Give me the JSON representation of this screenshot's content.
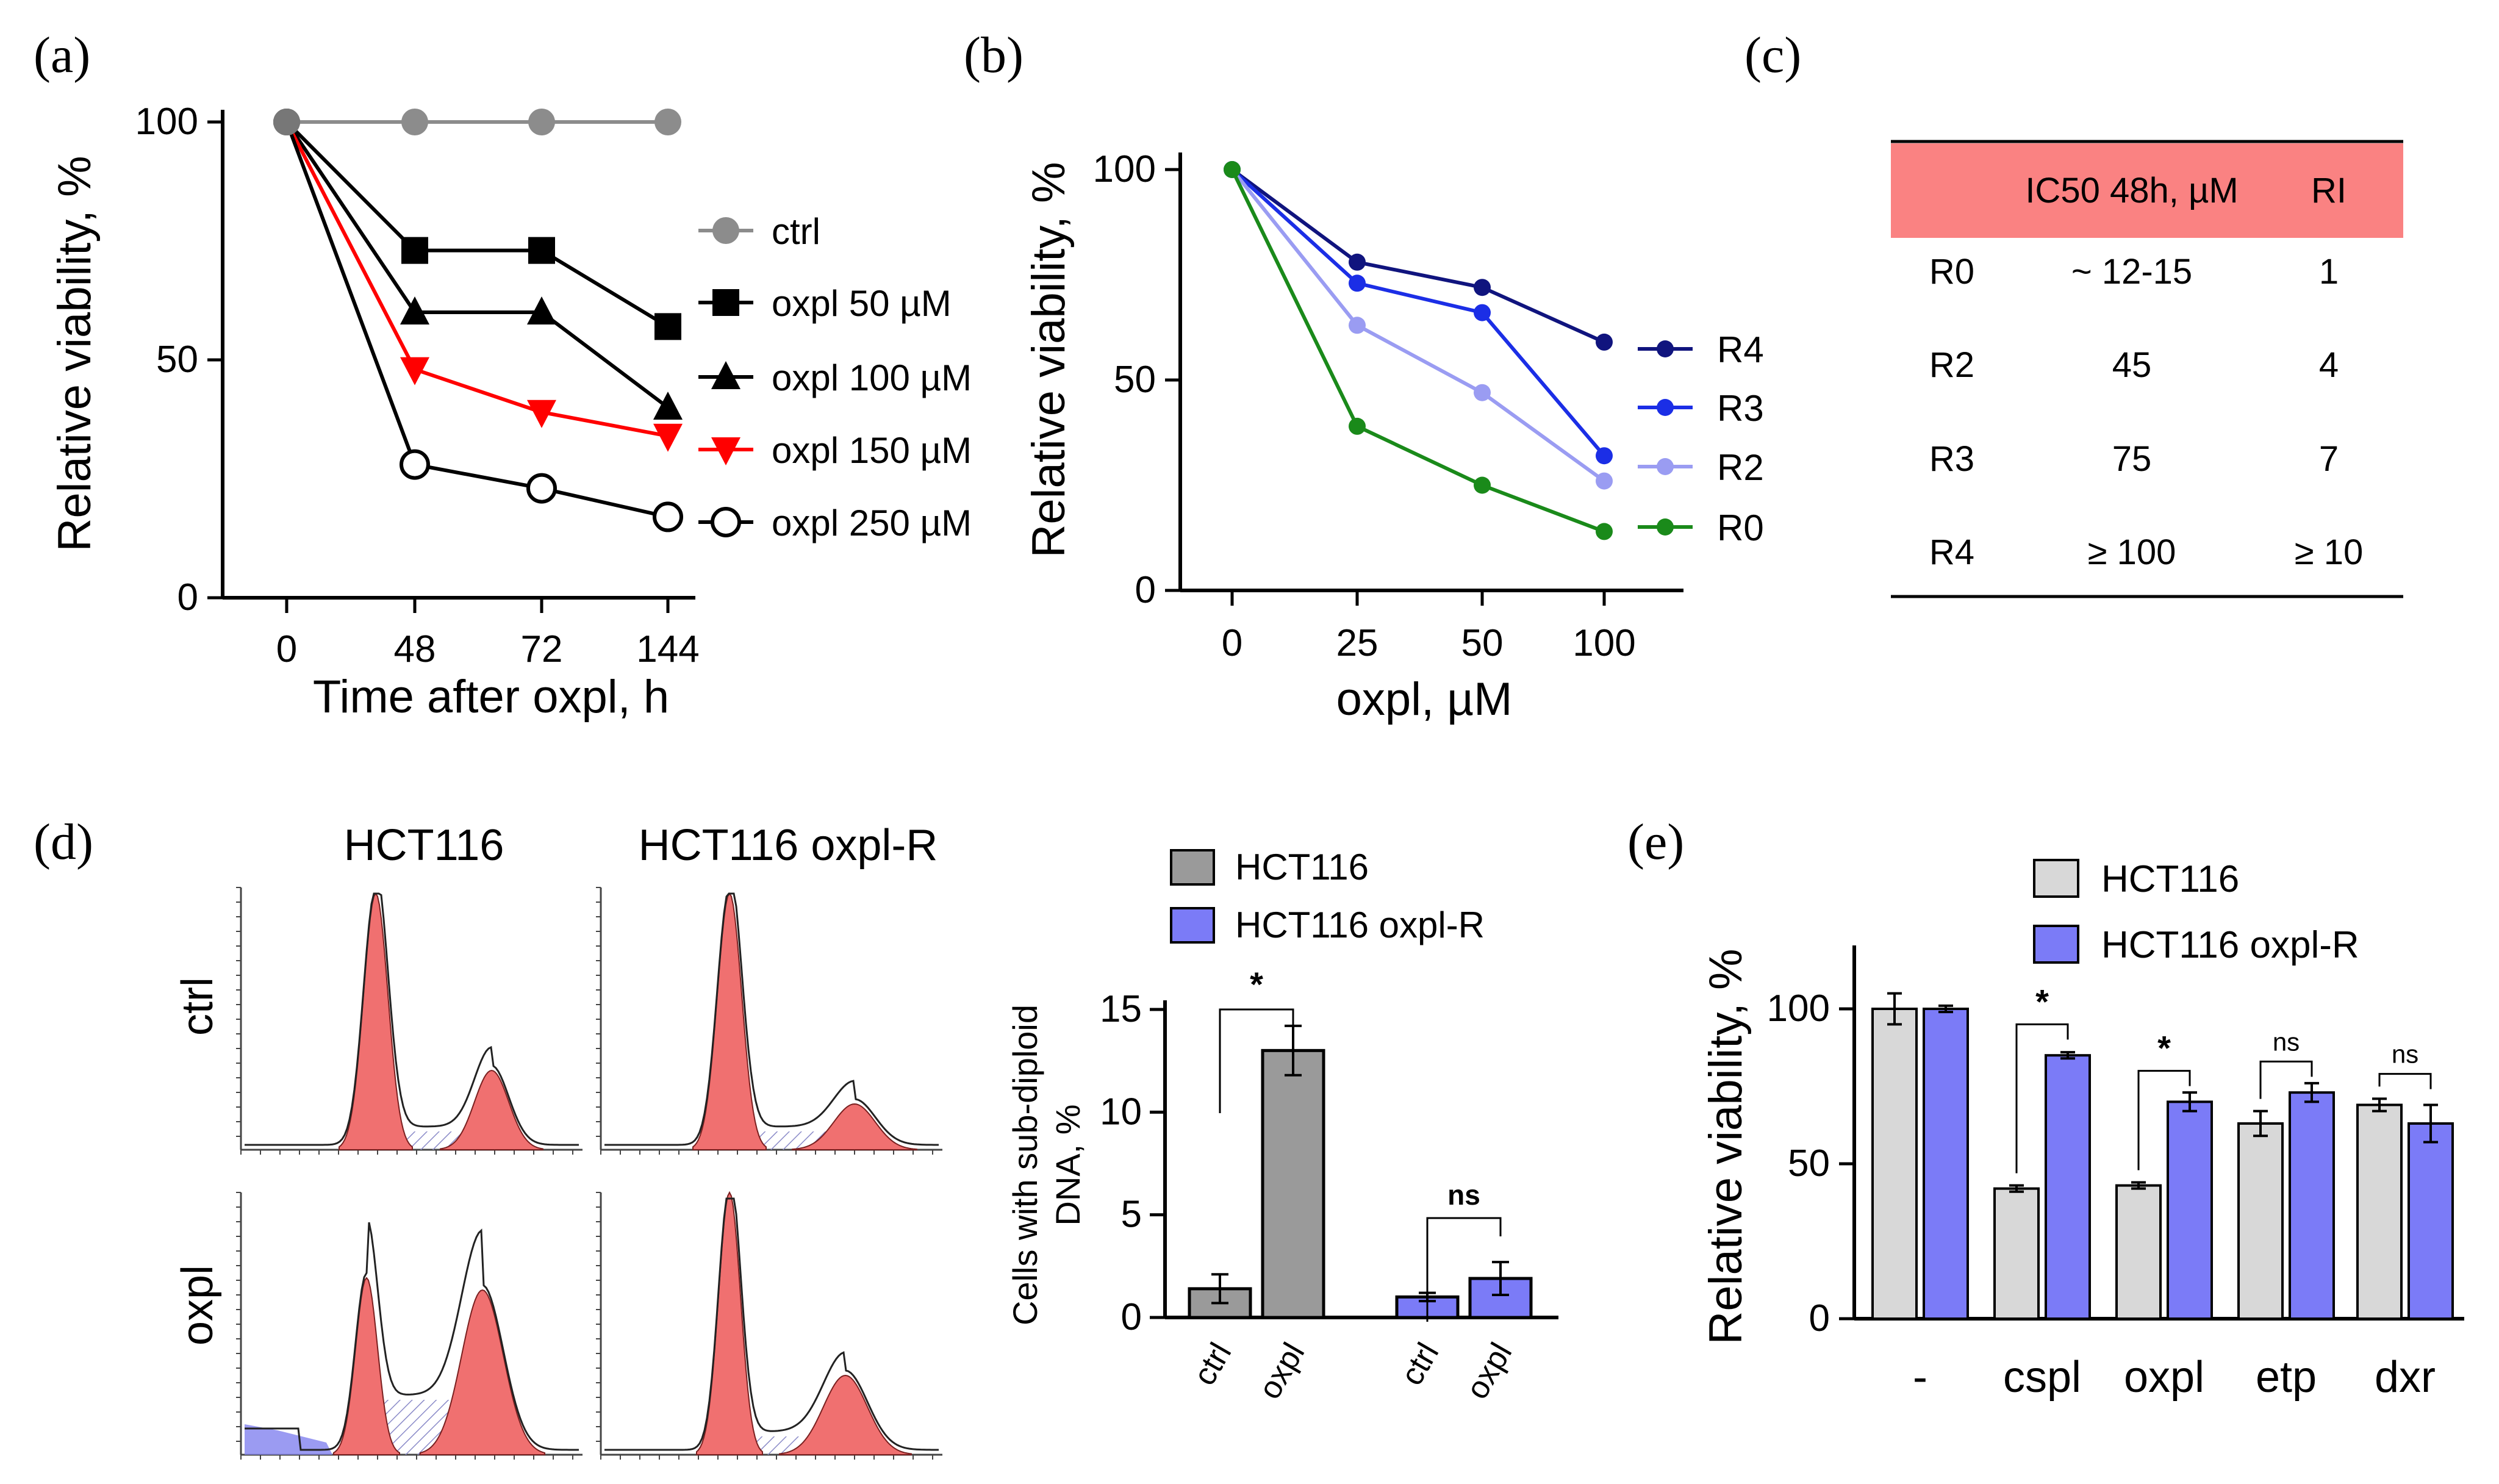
{
  "panel_labels": {
    "a": "(a)",
    "b": "(b)",
    "c": "(c)",
    "d": "(d)",
    "e": "(e)"
  },
  "colors": {
    "ctrl": "#8c8c8c",
    "black": "#000000",
    "red": "#ff0000",
    "R4": "#10147e",
    "R3": "#1b2ee6",
    "R2": "#9a9cf2",
    "R0": "#1a8a1a",
    "table_header": "#fa8282",
    "grey_bar": "#d8d8d8",
    "dark_grey_bar": "#9a9a9a",
    "blue_bar": "#7b7bf7",
    "hist_fill": "#f07070"
  },
  "chart_data": [
    {
      "id": "a",
      "type": "line",
      "xlabel": "Time after oxpl, h",
      "ylabel": "Relative viability, %",
      "categories": [
        "0",
        "48",
        "72",
        "144"
      ],
      "yticks": [
        "0",
        "50",
        "100"
      ],
      "ylim": [
        0,
        100
      ],
      "series": [
        {
          "name": "ctrl",
          "marker": "circle",
          "values": [
            100,
            100,
            100,
            100
          ]
        },
        {
          "name": "oxpl 50 µM",
          "marker": "square",
          "values": [
            100,
            73,
            73,
            57
          ]
        },
        {
          "name": "oxpl 100 µM",
          "marker": "triangle",
          "values": [
            100,
            60,
            60,
            40
          ]
        },
        {
          "name": "oxpl 150 µM",
          "marker": "triangle-down",
          "values": [
            100,
            48,
            39,
            34
          ]
        },
        {
          "name": "oxpl 250 µM",
          "marker": "open-circle",
          "values": [
            100,
            28,
            23,
            17
          ]
        }
      ]
    },
    {
      "id": "b",
      "type": "line",
      "xlabel": "oxpl, µM",
      "ylabel": "Relative viability, %",
      "categories": [
        "0",
        "25",
        "50",
        "100"
      ],
      "yticks": [
        "0",
        "50",
        "100"
      ],
      "ylim": [
        0,
        100
      ],
      "series": [
        {
          "name": "R4",
          "values": [
            100,
            78,
            72,
            59
          ]
        },
        {
          "name": "R3",
          "values": [
            100,
            73,
            66,
            32
          ]
        },
        {
          "name": "R2",
          "values": [
            100,
            63,
            47,
            26
          ]
        },
        {
          "name": "R0",
          "values": [
            100,
            39,
            25,
            14
          ]
        }
      ]
    },
    {
      "id": "c",
      "type": "table",
      "columns": [
        "",
        "IC50 48h, µM",
        "RI"
      ],
      "rows": [
        [
          "R0",
          "~ 12-15",
          "1"
        ],
        [
          "R2",
          "45",
          "4"
        ],
        [
          "R3",
          "75",
          "7"
        ],
        [
          "R4",
          "≥ 100",
          "≥ 10"
        ]
      ]
    },
    {
      "id": "d",
      "type": "bar",
      "ylabel_lines": [
        "Cells with sub-diploid",
        "DNA, %"
      ],
      "legend": [
        "HCT116",
        "HCT116 oxpl-R"
      ],
      "yticks": [
        "0",
        "5",
        "10",
        "15"
      ],
      "ylim": [
        0,
        15
      ],
      "categories": [
        "ctrl",
        "oxpl",
        "ctrl",
        "oxpl"
      ],
      "groups": [
        {
          "name": "HCT116",
          "values": [
            1.4,
            13.0
          ],
          "errors": [
            0.7,
            1.2
          ],
          "significance": "*"
        },
        {
          "name": "HCT116 oxpl-R",
          "values": [
            1.0,
            1.9
          ],
          "errors": [
            0.2,
            0.8
          ],
          "significance": "ns"
        }
      ],
      "histograms": {
        "columns": [
          "HCT116",
          "HCT116 oxpl-R"
        ],
        "rows": [
          "ctrl",
          "oxpl"
        ]
      }
    },
    {
      "id": "e",
      "type": "bar",
      "ylabel": "Relative viability, %",
      "legend": [
        "HCT116",
        "HCT116 oxpl-R"
      ],
      "yticks": [
        "0",
        "50",
        "100"
      ],
      "ylim": [
        0,
        120
      ],
      "categories": [
        "-",
        "cspl",
        "oxpl",
        "etp",
        "dxr"
      ],
      "series": [
        {
          "name": "HCT116",
          "values": [
            100,
            42,
            43,
            63,
            69
          ],
          "errors": [
            5,
            1,
            1,
            4,
            2
          ]
        },
        {
          "name": "HCT116 oxpl-R",
          "values": [
            100,
            85,
            70,
            73,
            63
          ],
          "errors": [
            1,
            1,
            3,
            3,
            6
          ]
        }
      ],
      "significance": [
        "",
        "*",
        "*",
        "ns",
        "ns"
      ]
    }
  ]
}
